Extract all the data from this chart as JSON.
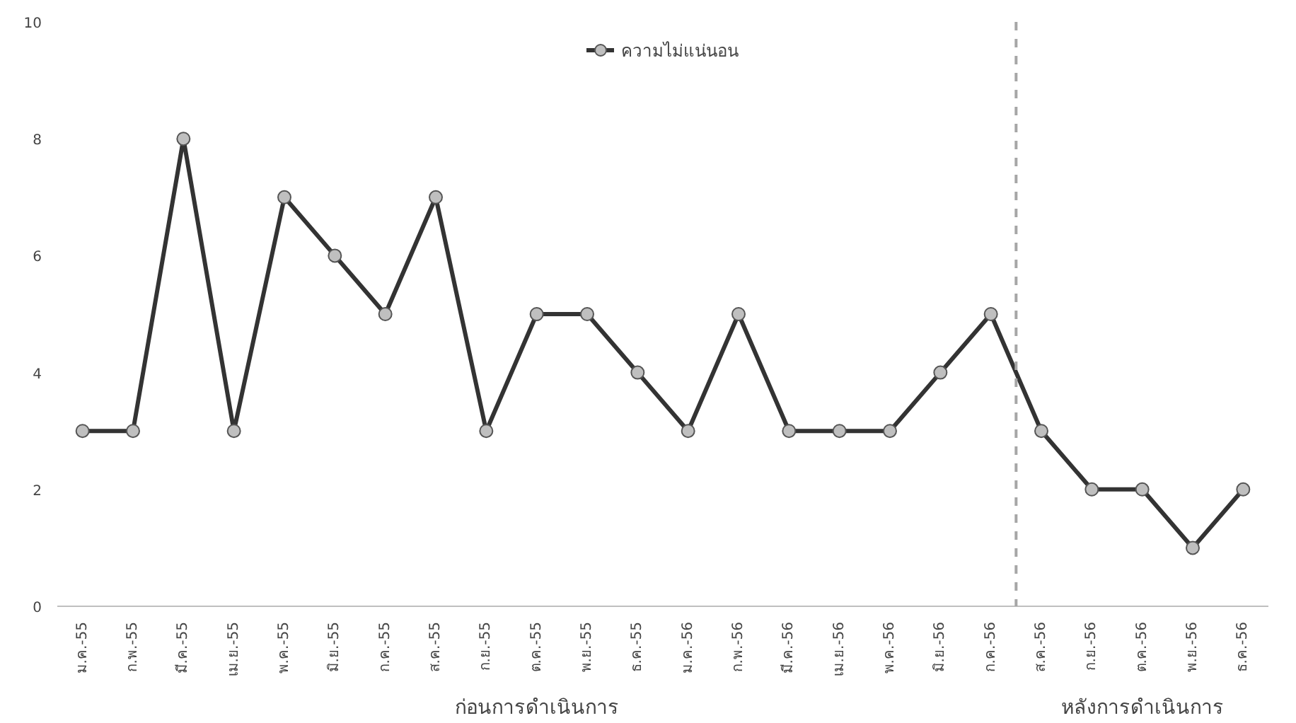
{
  "chart_data": {
    "type": "line",
    "categories": [
      "ม.ค.-55",
      "ก.พ.-55",
      "มี.ค.-55",
      "เม.ย.-55",
      "พ.ค.-55",
      "มิ.ย.-55",
      "ก.ค.-55",
      "ส.ค.-55",
      "ก.ย.-55",
      "ต.ค.-55",
      "พ.ย.-55",
      "ธ.ค.-55",
      "ม.ค.-56",
      "ก.พ.-56",
      "มี.ค.-56",
      "เม.ย.-56",
      "พ.ค.-56",
      "มิ.ย.-56",
      "ก.ค.-56",
      "ส.ค.-56",
      "ก.ย.-56",
      "ต.ค.-56",
      "พ.ย.-56",
      "ธ.ค.-56"
    ],
    "series": [
      {
        "name": "ความไม่แน่นอน",
        "color": "#333333",
        "values": [
          3,
          3,
          8,
          3,
          7,
          6,
          5,
          7,
          3,
          5,
          5,
          4,
          3,
          5,
          3,
          3,
          3,
          4,
          5,
          3,
          2,
          2,
          1,
          2
        ]
      }
    ],
    "ylim": [
      0,
      10
    ],
    "yticks": [
      0,
      2,
      4,
      6,
      8,
      10
    ],
    "annotations": [
      "ก่อนการดำเนินการ",
      "หลังการดำเนินการ"
    ],
    "marker": "circle",
    "line_style": "solid",
    "legend": "top",
    "grid": false
  }
}
